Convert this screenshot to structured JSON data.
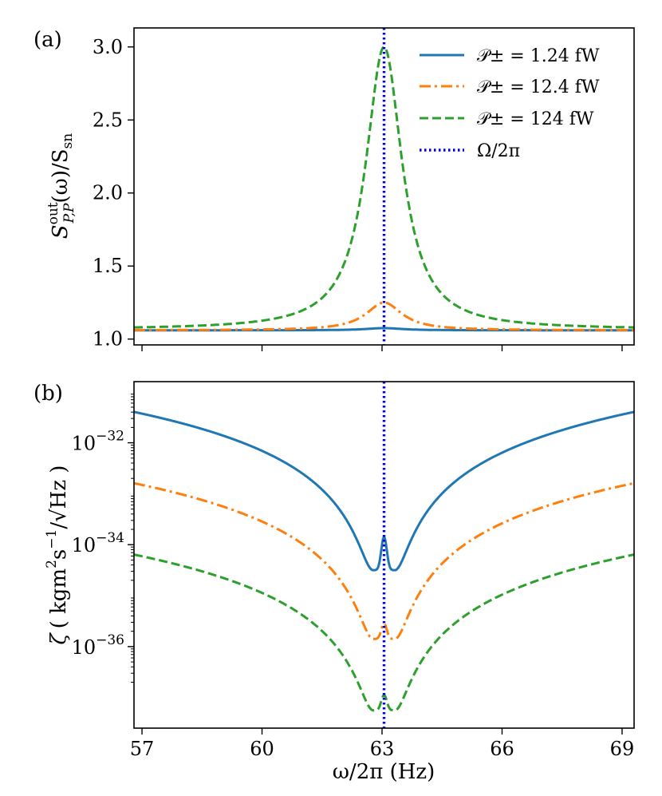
{
  "chart_data": [
    {
      "panel_label": "(a)",
      "type": "line",
      "ylabel": "S^out_{P,P}(ω)/S_sn",
      "ylabel_parts": {
        "main": "S",
        "sup": "out",
        "sub": "P,P",
        "rest": "(ω)/S",
        "rest_sub": "sn"
      },
      "xlim": [
        56.8,
        69.3
      ],
      "ylim": [
        0.96,
        3.13
      ],
      "yticks": [
        1.0,
        1.5,
        2.0,
        2.5,
        3.0
      ],
      "ytick_labels": [
        "1.0",
        "1.5",
        "2.0",
        "2.5",
        "3.0"
      ],
      "xticks": [
        57,
        60,
        63,
        66,
        69
      ],
      "center": 63.05,
      "legend_position": "top-right",
      "series": [
        {
          "name": "P± = 1.24 fW",
          "legend_math": "𝒫± = 1.24 fW",
          "color": "#1f77b4",
          "style": "solid",
          "baseline": 1.06,
          "peak": 1.075,
          "gamma": 0.55
        },
        {
          "name": "P± = 12.4 fW",
          "legend_math": "𝒫± = 12.4 fW",
          "color": "#ff7f0e",
          "style": "dashdot",
          "baseline": 1.06,
          "peak": 1.25,
          "gamma": 0.55
        },
        {
          "name": "P± = 124 fW",
          "legend_math": "𝒫± = 124 fW",
          "color": "#2ca02c",
          "style": "dashed",
          "baseline": 1.065,
          "peak": 3.0,
          "gamma": 0.55
        },
        {
          "name": "Ω/2π",
          "legend_math": "Ω/2π",
          "color": "#0000dd",
          "style": "dotted",
          "vertical_at": 63.05
        }
      ]
    },
    {
      "panel_label": "(b)",
      "type": "line",
      "yscale": "log",
      "ylabel": "ζ ( kgm²s⁻¹/√Hz )",
      "ylabel_parts": {
        "zeta": "ζ",
        "unit_left": "( kgm",
        "unit_sup1": "2",
        "unit_mid": "s",
        "unit_sup2": "−1",
        "unit_slash": "/",
        "unit_root": "√Hz",
        "unit_right": " )"
      },
      "xlabel": "ω/2π (Hz)",
      "xlim": [
        56.8,
        69.3
      ],
      "ylog_range": [
        -37.6,
        -30.8
      ],
      "yticks_exp": [
        -32,
        -34,
        -36
      ],
      "ytick_base": "10",
      "ytick_exp_labels": [
        "−32",
        "−34",
        "−36"
      ],
      "xticks": [
        57,
        60,
        63,
        66,
        69
      ],
      "xtick_labels": [
        "57",
        "60",
        "63",
        "66",
        "69"
      ],
      "center": 63.05,
      "series": [
        {
          "name": "P± = 1.24 fW",
          "color": "#1f77b4",
          "style": "solid",
          "log_edge": -31.35,
          "log_min": -34.5,
          "log_spike": -33.85
        },
        {
          "name": "P± = 12.4 fW",
          "color": "#ff7f0e",
          "style": "dashdot",
          "log_edge": -32.75,
          "log_min": -35.85,
          "log_spike": -35.55
        },
        {
          "name": "P± = 124 fW",
          "color": "#2ca02c",
          "style": "dashed",
          "log_edge": -34.15,
          "log_min": -37.25,
          "log_spike": -36.95
        },
        {
          "name": "Ω/2π",
          "color": "#0000dd",
          "style": "dotted",
          "vertical_at": 63.05
        }
      ]
    }
  ]
}
